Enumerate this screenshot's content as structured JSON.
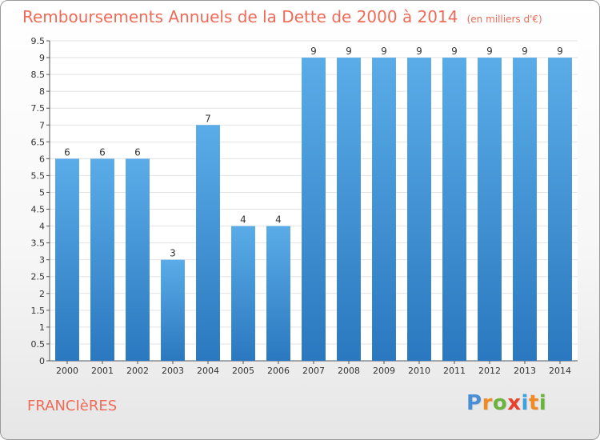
{
  "title": "Remboursements Annuels de la Dette de 2000 à 2014",
  "unit_note": "(en milliers d'€)",
  "commune": "FRANCIèRES",
  "brand": {
    "letters": [
      "P",
      "r",
      "o",
      "x",
      "i",
      "t",
      "i"
    ],
    "colors": [
      "#4a8fd6",
      "#f08a24",
      "#6ab43e",
      "#e8402c",
      "#3aa2dc",
      "#f08a24",
      "#6ab43e"
    ]
  },
  "colors": {
    "title": "#ef6b57",
    "bar_top": "#5aace8",
    "bar_bottom": "#2a78bf",
    "grid": "#e2e2e2"
  },
  "chart_data": {
    "type": "bar",
    "categories": [
      "2000",
      "2001",
      "2002",
      "2003",
      "2004",
      "2005",
      "2006",
      "2007",
      "2008",
      "2009",
      "2010",
      "2011",
      "2012",
      "2013",
      "2014"
    ],
    "values": [
      6,
      6,
      6,
      3,
      7,
      4,
      4,
      9,
      9,
      9,
      9,
      9,
      9,
      9,
      9
    ],
    "value_labels": [
      "6",
      "6",
      "6",
      "3",
      "7",
      "4",
      "4",
      "9",
      "9",
      "9",
      "9",
      "9",
      "9",
      "9",
      "9"
    ],
    "y_ticks": [
      "0",
      "0.5",
      "1",
      "1.5",
      "2",
      "2.5",
      "3",
      "3.5",
      "4",
      "4.5",
      "5",
      "5.5",
      "6",
      "6.5",
      "7",
      "7.5",
      "8",
      "8.5",
      "9",
      "9.5"
    ],
    "ylim": [
      0,
      9.5
    ],
    "grid": true,
    "xlabel": "",
    "ylabel": ""
  }
}
